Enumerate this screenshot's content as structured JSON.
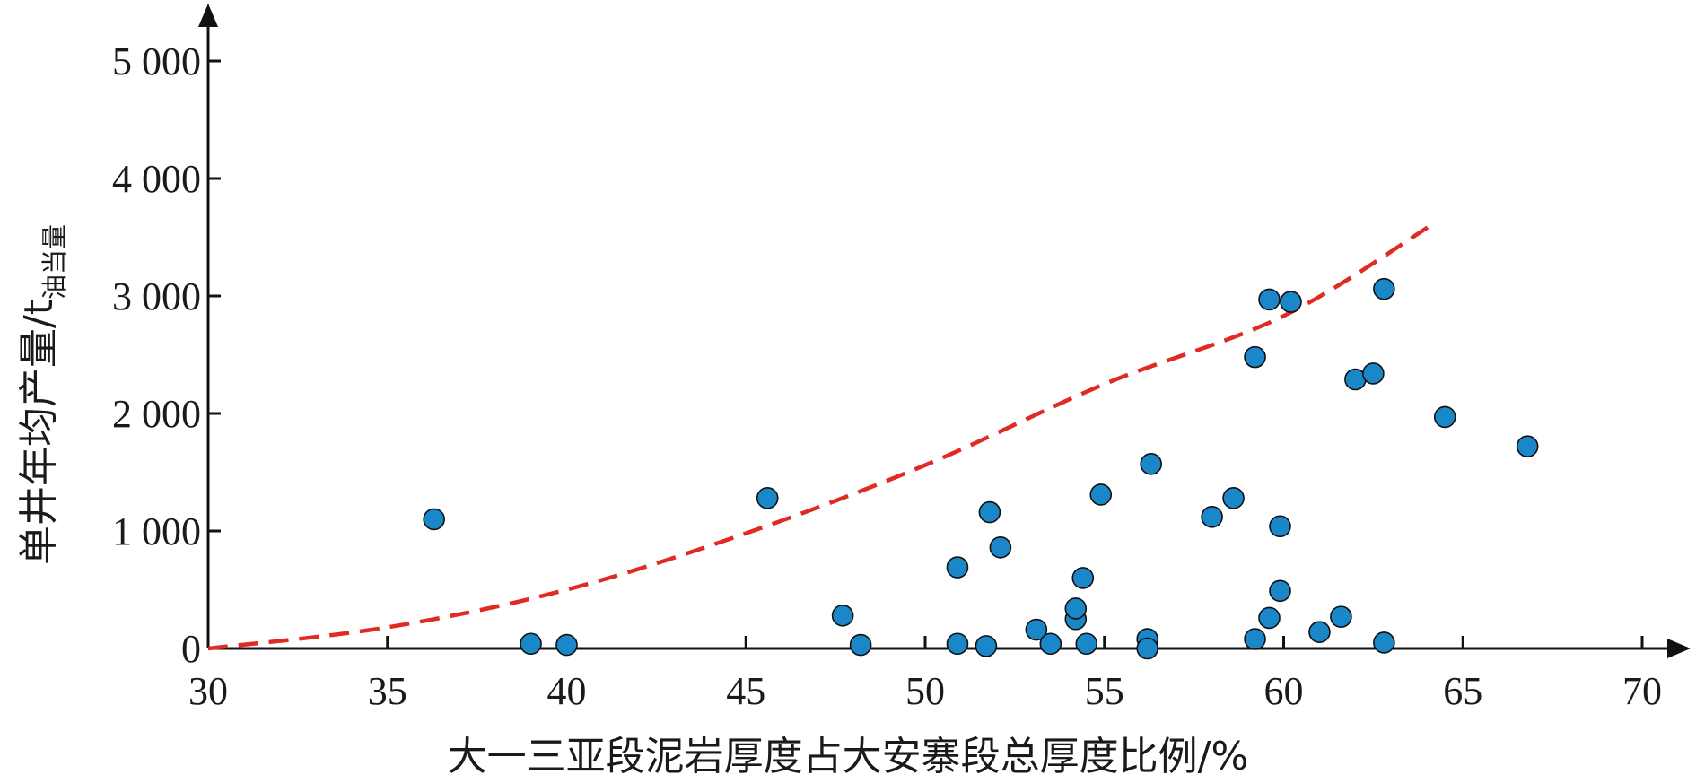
{
  "chart_data": {
    "type": "scatter",
    "xlabel": "大一三亚段泥岩厚度占大安寨段总厚度比例/%",
    "ylabel_main": "单井年均产量/t",
    "ylabel_sub": "油当量",
    "xlim": [
      30,
      70
    ],
    "ylim": [
      0,
      5000
    ],
    "x_ticks": [
      30,
      35,
      40,
      45,
      50,
      55,
      60,
      65,
      70
    ],
    "x_tick_labels": [
      "30",
      "35",
      "40",
      "45",
      "50",
      "55",
      "60",
      "65",
      "70"
    ],
    "y_ticks": [
      0,
      1000,
      2000,
      3000,
      4000,
      5000
    ],
    "y_tick_labels": [
      "0",
      "1 000",
      "2 000",
      "3 000",
      "4 000",
      "5 000"
    ],
    "grid": false,
    "legend": "none",
    "colors": {
      "point_fill": "#1a87c9",
      "point_stroke": "#111111",
      "trend": "#e02b22",
      "axis": "#111111"
    },
    "points": [
      {
        "x": 36.3,
        "y": 1100
      },
      {
        "x": 39.0,
        "y": 40
      },
      {
        "x": 40.0,
        "y": 30
      },
      {
        "x": 45.6,
        "y": 1280
      },
      {
        "x": 47.7,
        "y": 280
      },
      {
        "x": 48.2,
        "y": 30
      },
      {
        "x": 50.9,
        "y": 40
      },
      {
        "x": 50.9,
        "y": 690
      },
      {
        "x": 51.7,
        "y": 20
      },
      {
        "x": 51.8,
        "y": 1160
      },
      {
        "x": 52.1,
        "y": 860
      },
      {
        "x": 53.1,
        "y": 160
      },
      {
        "x": 53.5,
        "y": 40
      },
      {
        "x": 54.2,
        "y": 250
      },
      {
        "x": 54.2,
        "y": 340
      },
      {
        "x": 54.4,
        "y": 600
      },
      {
        "x": 54.5,
        "y": 40
      },
      {
        "x": 54.9,
        "y": 1310
      },
      {
        "x": 56.2,
        "y": 80
      },
      {
        "x": 56.2,
        "y": 0
      },
      {
        "x": 56.3,
        "y": 1570
      },
      {
        "x": 58.0,
        "y": 1120
      },
      {
        "x": 58.6,
        "y": 1280
      },
      {
        "x": 59.2,
        "y": 2480
      },
      {
        "x": 59.2,
        "y": 80
      },
      {
        "x": 59.6,
        "y": 2970
      },
      {
        "x": 59.6,
        "y": 260
      },
      {
        "x": 59.9,
        "y": 490
      },
      {
        "x": 59.9,
        "y": 1040
      },
      {
        "x": 60.2,
        "y": 2950
      },
      {
        "x": 61.0,
        "y": 140
      },
      {
        "x": 61.6,
        "y": 270
      },
      {
        "x": 62.0,
        "y": 2290
      },
      {
        "x": 62.5,
        "y": 2340
      },
      {
        "x": 62.8,
        "y": 3060
      },
      {
        "x": 62.8,
        "y": 50
      },
      {
        "x": 64.5,
        "y": 1970
      },
      {
        "x": 66.8,
        "y": 1720
      }
    ],
    "trend_line": {
      "style": "dashed",
      "points": [
        {
          "x": 30,
          "y": 0
        },
        {
          "x": 35,
          "y": 180
        },
        {
          "x": 40,
          "y": 500
        },
        {
          "x": 45,
          "y": 980
        },
        {
          "x": 50,
          "y": 1560
        },
        {
          "x": 55,
          "y": 2250
        },
        {
          "x": 60,
          "y": 2830
        },
        {
          "x": 64.2,
          "y": 3620
        }
      ]
    }
  }
}
